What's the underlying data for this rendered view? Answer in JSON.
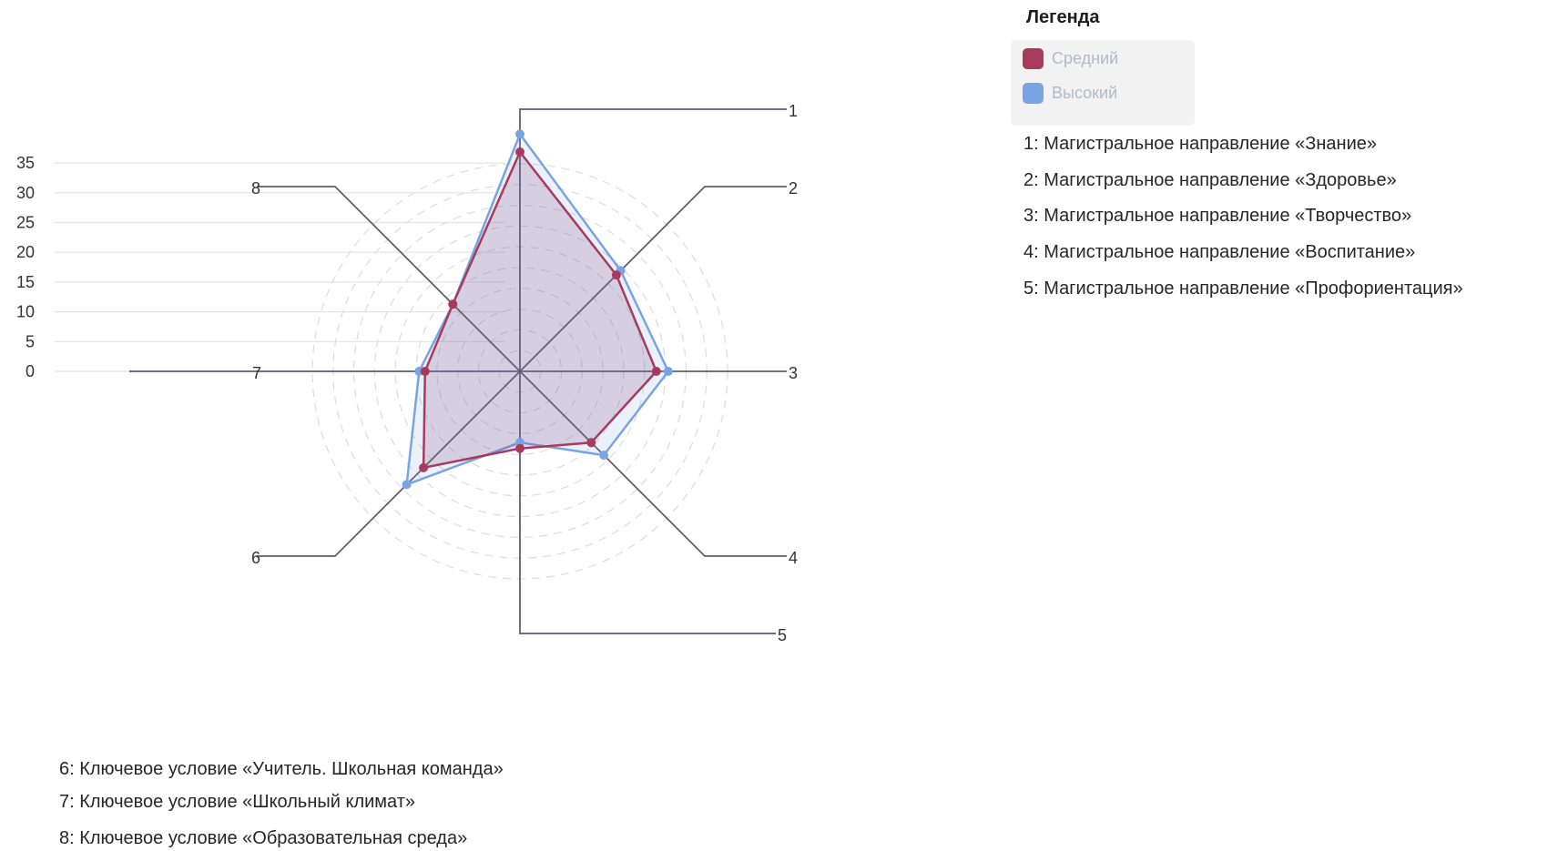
{
  "chart_data": {
    "type": "radar",
    "axis_labels": [
      "1",
      "2",
      "3",
      "4",
      "5",
      "6",
      "7",
      "8"
    ],
    "scale_ticks": [
      "0",
      "5",
      "10",
      "15",
      "20",
      "25",
      "30",
      "35"
    ],
    "rmax": 35,
    "grid": true,
    "legend_position": "top-right",
    "series": [
      {
        "name": "Средний",
        "color": "#a83a5e",
        "values": [
          37,
          23,
          23,
          17,
          13,
          23,
          16,
          16
        ]
      },
      {
        "name": "Высокий",
        "color": "#7aa3e5",
        "values": [
          40,
          24,
          25,
          20,
          12,
          27,
          17,
          16
        ]
      }
    ]
  },
  "legend": {
    "title": "Легенда",
    "items": [
      {
        "label": "Средний",
        "color": "#a83a5e"
      },
      {
        "label": "Высокий",
        "color": "#7aa3e5"
      }
    ]
  },
  "axis_descriptions": [
    "1: Магистральное направление «Знание»",
    "2: Магистральное направление «Здоровье»",
    "3: Магистральное направление «Творчество»",
    "4: Магистральное направление «Воспитание»",
    "5: Магистральное направление «Профориентация»",
    "6: Ключевое условие «Учитель. Школьная команда»",
    "7: Ключевое условие «Школьный климат»",
    "8: Ключевое условие «Образовательная среда»"
  ]
}
